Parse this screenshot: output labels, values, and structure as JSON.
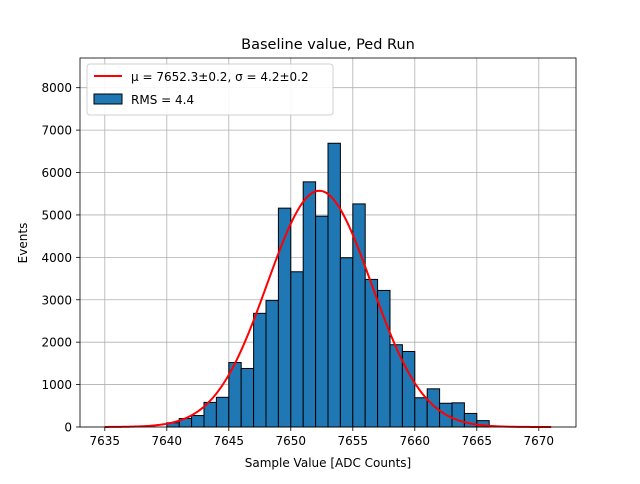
{
  "chart_data": {
    "type": "bar",
    "title": "Baseline value, Ped Run",
    "xlabel": "Sample Value [ADC Counts]",
    "ylabel": "Events",
    "xlim": [
      7633.0,
      7673.0
    ],
    "ylim": [
      0,
      8700
    ],
    "xticks": [
      7635,
      7640,
      7645,
      7650,
      7655,
      7660,
      7665,
      7670
    ],
    "yticks": [
      0,
      1000,
      2000,
      3000,
      4000,
      5000,
      6000,
      7000,
      8000
    ],
    "grid": true,
    "legend_position": "top-left",
    "bin_edges": [
      7640.0,
      7641.0,
      7642.0,
      7643.0,
      7644.0,
      7645.0,
      7646.0,
      7647.0,
      7648.0,
      7649.0,
      7650.0,
      7651.0,
      7652.0,
      7653.0,
      7654.0,
      7655.0,
      7656.0,
      7657.0,
      7658.0,
      7659.0,
      7660.0,
      7661.0,
      7662.0,
      7663.0,
      7664.0,
      7665.0,
      7666.0
    ],
    "counts": [
      100,
      200,
      270,
      580,
      700,
      1520,
      1380,
      2680,
      2980,
      5160,
      3660,
      5780,
      4970,
      6690,
      3990,
      5260,
      3480,
      3220,
      1940,
      1780,
      690,
      900,
      560,
      570,
      320,
      150,
      70
    ],
    "fit": {
      "type": "gaussian",
      "mu": 7652.3,
      "sigma": 4.2,
      "amplitude": 5570,
      "x_range": [
        7635.0,
        7671.0
      ],
      "color": "#ff0000"
    },
    "legend": [
      {
        "label": "μ = 7652.3±0.2, σ = 4.2±0.2",
        "kind": "line",
        "color": "#ff0000"
      },
      {
        "label": "RMS = 4.4",
        "kind": "patch",
        "color": "#1f77b4"
      }
    ],
    "colors": {
      "bars": "#1f77b4",
      "bar_edge": "#000000",
      "fit": "#ff0000"
    }
  }
}
